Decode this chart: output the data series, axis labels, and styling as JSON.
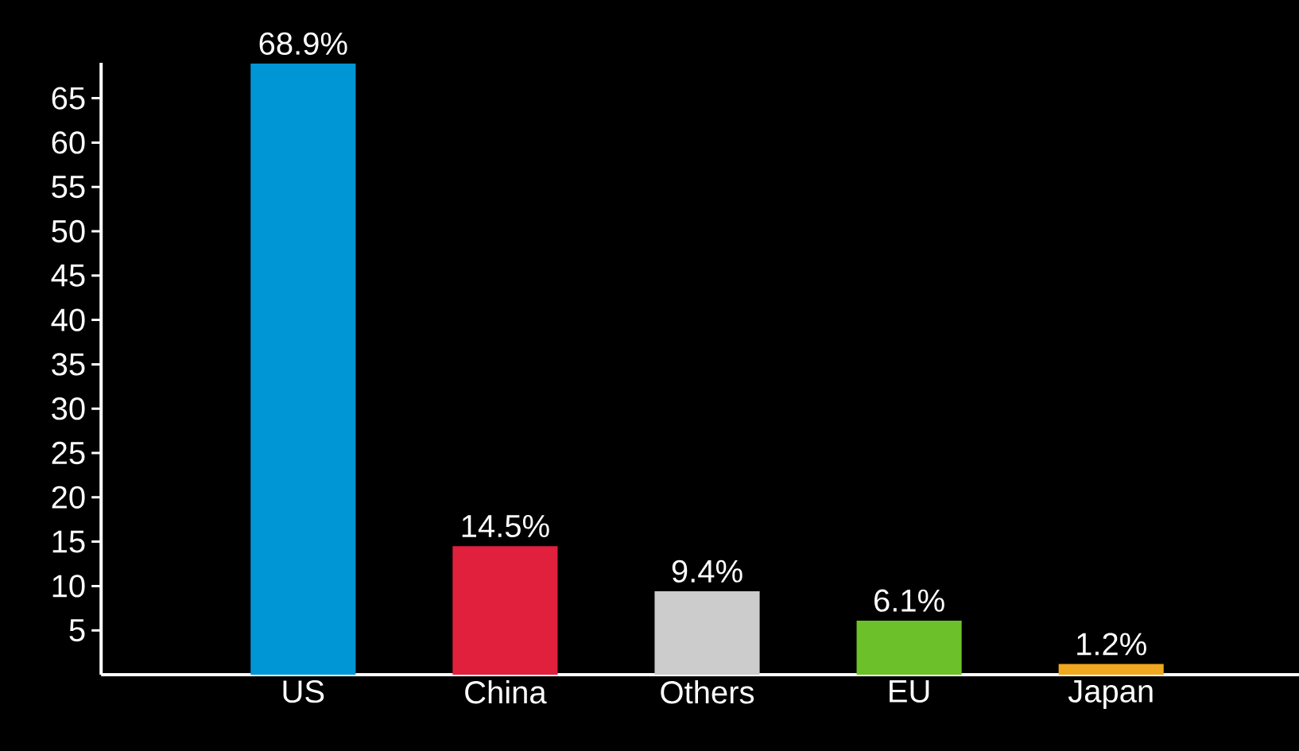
{
  "chart_data": {
    "type": "bar",
    "categories": [
      "US",
      "China",
      "Others",
      "EU",
      "Japan"
    ],
    "values": [
      68.9,
      14.5,
      9.4,
      6.1,
      1.2
    ],
    "colors": [
      "#0096d6",
      "#e0203c",
      "#cccccc",
      "#6cc12a",
      "#f0a820"
    ],
    "value_labels": [
      "68.9%",
      "14.5%",
      "9.4%",
      "6.1%",
      "1.2%"
    ],
    "ylim": [
      0,
      69
    ],
    "yticks": [
      5,
      10,
      15,
      20,
      25,
      30,
      35,
      40,
      45,
      50,
      55,
      60,
      65
    ]
  }
}
